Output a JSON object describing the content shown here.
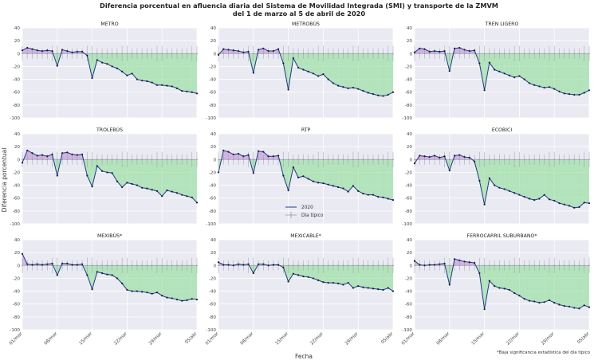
{
  "figure": {
    "title_line1": "Diferencia porcentual en afluencia diaria del Sistema de Movilidad Integrada (SMI) y transporte de la ZMVM",
    "title_line2": "del 1 de marzo al 5 de abril de 2020",
    "xlabel": "Fecha",
    "ylabel": "Diferencia porcentual",
    "footnote": "*Baja significancia estadística del día típico",
    "legend": {
      "series_2020": "2020",
      "typical": "Día típico"
    },
    "y_ticks": [
      "40",
      "20",
      "0",
      "-20",
      "-40",
      "-60",
      "-80",
      "-100"
    ],
    "x_ticks": [
      "01/mar",
      "08/mar",
      "15/mar",
      "22/mar",
      "29/mar",
      "05/abr"
    ]
  },
  "colors": {
    "panel_bg": "#eaeaf2",
    "line": "#1f3a8a",
    "marker": "#1a1a40",
    "negative_fill": "#9fe0a8",
    "positive_fill": "#c9a0dc",
    "typical": "#9a9aaa"
  },
  "chart_data": {
    "type": "line",
    "x_start": "2020-03-01",
    "x_end": "2020-04-05",
    "ylim": [
      -100,
      40
    ],
    "grid": true,
    "legend_position": "center",
    "panels": [
      {
        "title": "METRO",
        "values": [
          5,
          9,
          7,
          5,
          4,
          5,
          4,
          -19,
          6,
          4,
          2,
          3,
          3,
          -3,
          -38,
          -10,
          -14,
          -16,
          -20,
          -23,
          -28,
          -34,
          -31,
          -40,
          -42,
          -43,
          -45,
          -49,
          -49,
          -50,
          -51,
          -54,
          -58,
          -59,
          -60,
          -62
        ]
      },
      {
        "title": "METROBÚS",
        "values": [
          -2,
          7,
          6,
          5,
          4,
          2,
          3,
          -30,
          6,
          8,
          4,
          4,
          7,
          -15,
          -56,
          -7,
          -22,
          -25,
          -28,
          -31,
          -35,
          -32,
          -40,
          -46,
          -50,
          -52,
          -54,
          -53,
          -55,
          -58,
          -61,
          -63,
          -65,
          -66,
          -64,
          -60
        ]
      },
      {
        "title": "TREN LIGERO",
        "values": [
          2,
          8,
          7,
          3,
          4,
          3,
          4,
          -27,
          8,
          9,
          6,
          4,
          5,
          -15,
          -57,
          -14,
          -25,
          -28,
          -31,
          -34,
          -37,
          -35,
          -40,
          -46,
          -49,
          -51,
          -53,
          -52,
          -55,
          -59,
          -62,
          -63,
          -64,
          -64,
          -61,
          -57
        ]
      },
      {
        "title": "TROLEBÚS",
        "values": [
          -5,
          14,
          10,
          6,
          7,
          5,
          8,
          -25,
          10,
          11,
          8,
          7,
          8,
          -25,
          -42,
          -10,
          -18,
          -20,
          -21,
          -34,
          -43,
          -36,
          -38,
          -40,
          -44,
          -45,
          -47,
          -49,
          -57,
          -48,
          -50,
          -52,
          -55,
          -57,
          -59,
          -67
        ]
      },
      {
        "title": "RTP",
        "values": [
          -20,
          14,
          12,
          8,
          9,
          5,
          7,
          -21,
          13,
          12,
          5,
          5,
          6,
          -25,
          -48,
          -12,
          -28,
          -26,
          -30,
          -34,
          -36,
          -37,
          -39,
          -41,
          -43,
          -45,
          -50,
          -41,
          -49,
          -53,
          -55,
          -55,
          -58,
          -59,
          -61,
          -63
        ]
      },
      {
        "title": "ECOBICI",
        "values": [
          -6,
          6,
          5,
          4,
          6,
          3,
          5,
          -17,
          6,
          7,
          4,
          3,
          -3,
          -33,
          -70,
          -29,
          -40,
          -44,
          -46,
          -49,
          -52,
          -55,
          -58,
          -61,
          -63,
          -61,
          -55,
          -62,
          -64,
          -68,
          -70,
          -72,
          -75,
          -74,
          -67,
          -68
        ]
      },
      {
        "title": "MEXIBÚS*",
        "values": [
          18,
          2,
          1,
          2,
          1,
          2,
          3,
          -15,
          3,
          3,
          1,
          1,
          2,
          -15,
          -37,
          -10,
          -12,
          -14,
          -15,
          -20,
          -28,
          -38,
          -40,
          -40,
          -41,
          -42,
          -44,
          -42,
          -47,
          -50,
          -51,
          -53,
          -55,
          -54,
          -52,
          -53
        ]
      },
      {
        "title": "MEXICABLE*",
        "values": [
          5,
          1,
          1,
          0,
          2,
          1,
          2,
          -12,
          2,
          2,
          0,
          1,
          1,
          -3,
          -25,
          -13,
          -15,
          -17,
          -18,
          -20,
          -23,
          -26,
          -27,
          -27,
          -28,
          -30,
          -27,
          -35,
          -32,
          -34,
          -35,
          -36,
          -37,
          -38,
          -35,
          -40
        ]
      },
      {
        "title": "FERROCARRIL SUBURBANO*",
        "values": [
          7,
          1,
          0,
          1,
          1,
          2,
          3,
          -30,
          10,
          8,
          6,
          5,
          4,
          -12,
          -68,
          -24,
          -32,
          -35,
          -36,
          -38,
          -43,
          -47,
          -52,
          -55,
          -56,
          -58,
          -57,
          -54,
          -58,
          -61,
          -63,
          -64,
          -66,
          -67,
          -62,
          -65
        ]
      }
    ]
  }
}
